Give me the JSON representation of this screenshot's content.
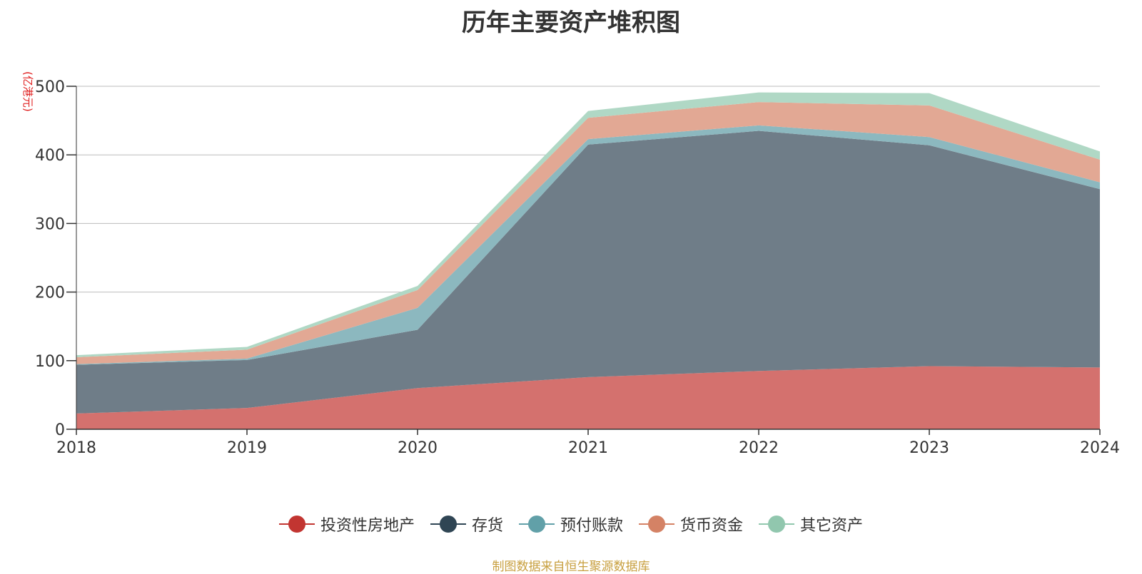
{
  "title": "历年主要资产堆积图",
  "unit_label": "(亿港元)",
  "source_note": "制图数据来自恒生聚源数据库",
  "colors": {
    "axis": "#333333",
    "grid": "#bbbbbb"
  },
  "chart_data": {
    "type": "area",
    "stacked": true,
    "categories": [
      "2018",
      "2019",
      "2020",
      "2021",
      "2022",
      "2023",
      "2024"
    ],
    "ylim": [
      0,
      500
    ],
    "yticks": [
      0,
      100,
      200,
      300,
      400,
      500
    ],
    "grid": true,
    "legend_position": "bottom",
    "series": [
      {
        "name": "投资性房地产",
        "color": "#c23531",
        "fill": "#d4716e",
        "values": [
          23,
          31,
          60,
          76,
          85,
          92,
          90
        ]
      },
      {
        "name": "存货",
        "color": "#2f4554",
        "fill": "#6f7d88",
        "values": [
          71,
          70,
          85,
          339,
          350,
          322,
          260
        ]
      },
      {
        "name": "预付账款",
        "color": "#61a0a8",
        "fill": "#8cb8bf",
        "values": [
          1,
          2,
          32,
          8,
          8,
          12,
          10
        ]
      },
      {
        "name": "货币资金",
        "color": "#d48265",
        "fill": "#e2a894",
        "values": [
          10,
          13,
          26,
          31,
          34,
          46,
          33
        ]
      },
      {
        "name": "其它资产",
        "color": "#91c7ae",
        "fill": "#b0d8c5",
        "values": [
          3,
          4,
          6,
          10,
          14,
          18,
          12
        ]
      }
    ]
  }
}
